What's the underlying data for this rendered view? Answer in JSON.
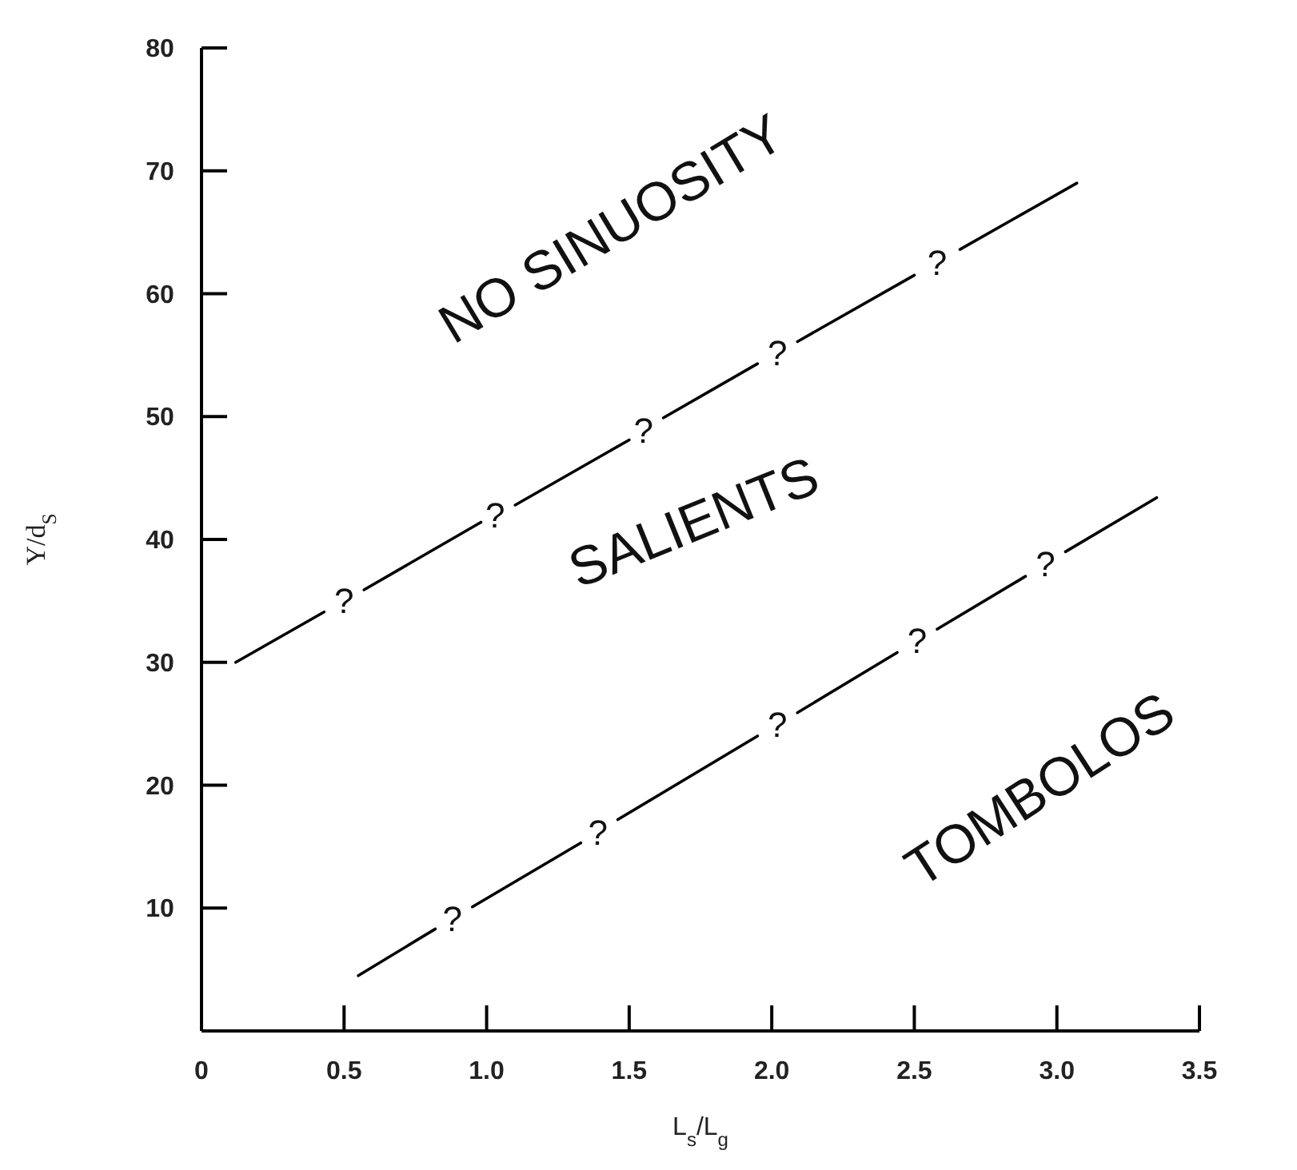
{
  "chart_data": {
    "type": "line",
    "xlabel": "L$_{s}$/L$_{g}$",
    "ylabel": "Y/d$_{S}$",
    "xlim": [
      0,
      3.5
    ],
    "ylim": [
      0,
      80
    ],
    "xticks": [
      {
        "value": 0,
        "label": "0"
      },
      0.5,
      {
        "value": 1,
        "label": "1.0"
      },
      1.5,
      {
        "value": 2,
        "label": "2.0"
      },
      2.5,
      {
        "value": 3,
        "label": "3.0"
      },
      3.5
    ],
    "yticks": [
      {
        "value": 0,
        "label": null
      },
      10,
      20,
      30,
      40,
      50,
      60,
      70,
      80
    ],
    "grid": false,
    "marker": "none",
    "line_style": "solid",
    "series": [
      {
        "color": "#000000",
        "x": [
          0.12,
          0.43,
          0.5,
          0.57,
          0.98,
          1.03,
          1.1,
          1.5,
          1.55,
          1.62,
          1.95,
          2.02,
          2.09,
          2.5,
          2.58,
          2.66,
          3.07
        ],
        "values": [
          30,
          34.1,
          null,
          35.9,
          41.4,
          null,
          42.8,
          48.1,
          null,
          49.9,
          54.3,
          null,
          56.1,
          61.5,
          null,
          63.6,
          69
        ]
      },
      {
        "color": "#000000",
        "x": [
          0.55,
          0.82,
          0.88,
          0.95,
          1.33,
          1.39,
          1.46,
          1.95,
          2.02,
          2.09,
          2.44,
          2.51,
          2.58,
          2.89,
          2.96,
          3.03,
          3.35
        ],
        "values": [
          4.5,
          8.3,
          null,
          10.1,
          15.3,
          null,
          17.2,
          24,
          null,
          25.9,
          30.8,
          null,
          32.7,
          37,
          null,
          39,
          43.4
        ]
      }
    ],
    "annotations": [
      "?",
      "?",
      "?",
      "?",
      "?",
      "?",
      "?",
      "?",
      "?",
      "?",
      "NO SINUOSITY",
      "SALIENTS",
      "TOMBOLOS"
    ]
  }
}
